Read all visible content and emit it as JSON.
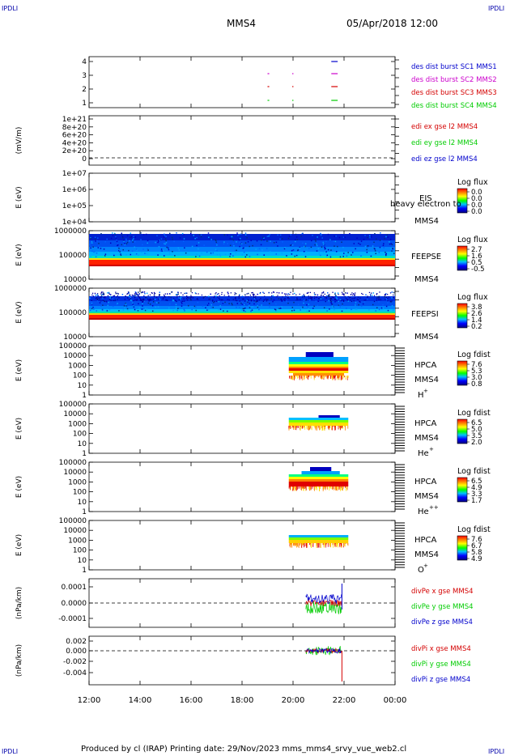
{
  "corner_label": "IPDLI",
  "header": {
    "spacecraft": "MMS4",
    "datetime": "05/Apr/2018 12:00"
  },
  "footer": {
    "text": "Produced by cl (IRAP)    Printing date: 29/Nov/2023    mms_mms4_srvy_vue_web2.cl"
  },
  "colors": {
    "red": "#d40000",
    "green": "#00cc00",
    "blue": "#0000cc",
    "magenta": "#cc00cc",
    "dash": "#000000"
  },
  "chart_data": {
    "type": "stacked-time-series",
    "x_range": [
      "12:00",
      "00:00"
    ],
    "x_ticks": [
      "12:00",
      "14:00",
      "16:00",
      "18:00",
      "20:00",
      "22:00",
      "00:00"
    ],
    "panels": [
      {
        "id": "burst",
        "type": "scatter",
        "y_ticks": [
          "4",
          "3",
          "2",
          "1"
        ],
        "series": [
          {
            "name": "des dist burst SC1 MMS1",
            "color": "#0000cc",
            "y": 4,
            "segments": [
              [
                "21:30",
                "21:45"
              ]
            ]
          },
          {
            "name": "des dist burst SC2 MMS2",
            "color": "#cc00cc",
            "y": 3,
            "segments": [
              [
                "19:00",
                "19:04"
              ],
              [
                "19:58",
                "20:00"
              ],
              [
                "21:30",
                "21:45"
              ]
            ]
          },
          {
            "name": "des dist burst SC3 MMS3",
            "color": "#d40000",
            "y": 2,
            "segments": [
              [
                "19:00",
                "19:04"
              ],
              [
                "19:58",
                "20:00"
              ],
              [
                "21:30",
                "21:45"
              ]
            ]
          },
          {
            "name": "des dist burst SC4 MMS4",
            "color": "#00cc00",
            "y": 1,
            "segments": [
              [
                "19:00",
                "19:04"
              ],
              [
                "19:58",
                "20:00"
              ],
              [
                "21:30",
                "21:45"
              ]
            ]
          }
        ]
      },
      {
        "id": "edi",
        "type": "line",
        "ylabel": "(mV/m)",
        "y_ticks": [
          "1e+21",
          "8e+20",
          "6e+20",
          "4e+20",
          "2e+20",
          "0"
        ],
        "series": [
          {
            "name": "edi ex gse l2 MMS4",
            "color": "#d40000"
          },
          {
            "name": "edi ey gse l2 MMS4",
            "color": "#00cc00"
          },
          {
            "name": "edi ez gse l2 MMS4",
            "color": "#0000cc"
          }
        ]
      },
      {
        "id": "eis",
        "type": "heatmap",
        "ylabel": "E (eV)",
        "y_ticks": [
          "1e+07",
          "1e+06",
          "1e+05",
          "1e+04"
        ],
        "instrument": [
          "EIS",
          "MMS4"
        ],
        "overlay_text": "heavy electron to",
        "colorbar": {
          "title": "Log flux",
          "ticks": [
            "0.0",
            "0.0",
            "0.0",
            "0.0"
          ]
        }
      },
      {
        "id": "feepse",
        "type": "heatmap",
        "ylabel": "E (eV)",
        "y_ticks": [
          "1000000",
          "100000",
          "10000"
        ],
        "instrument": [
          "FEEPSE",
          "MMS4"
        ],
        "colorbar": {
          "title": "Log flux",
          "ticks": [
            "2.7",
            "1.6",
            "0.5",
            "-0.5"
          ]
        }
      },
      {
        "id": "feepsi",
        "type": "heatmap",
        "ylabel": "E (eV)",
        "y_ticks": [
          "1000000",
          "100000",
          "10000"
        ],
        "instrument": [
          "FEEPSI",
          "MMS4"
        ],
        "colorbar": {
          "title": "Log flux",
          "ticks": [
            "3.8",
            "2.6",
            "1.4",
            "0.2"
          ]
        }
      },
      {
        "id": "hpca_h",
        "type": "heatmap",
        "ylabel": "E (eV)",
        "y_ticks": [
          "100000",
          "10000",
          "1000",
          "100",
          "10",
          "1"
        ],
        "instrument": [
          "HPCA",
          "MMS4"
        ],
        "species": "H",
        "species_sup": "+",
        "colorbar": {
          "title": "Log fdist",
          "ticks": [
            "7.6",
            "5.3",
            "3.0",
            "0.8"
          ]
        }
      },
      {
        "id": "hpca_he",
        "type": "heatmap",
        "ylabel": "E (eV)",
        "y_ticks": [
          "100000",
          "10000",
          "1000",
          "100",
          "10",
          "1"
        ],
        "instrument": [
          "HPCA",
          "MMS4"
        ],
        "species": "He",
        "species_sup": "+",
        "colorbar": {
          "title": "Log fdist",
          "ticks": [
            "6.5",
            "5.0",
            "3.5",
            "2.0"
          ]
        }
      },
      {
        "id": "hpca_hepp",
        "type": "heatmap",
        "ylabel": "E (eV)",
        "y_ticks": [
          "100000",
          "10000",
          "1000",
          "100",
          "10",
          "1"
        ],
        "instrument": [
          "HPCA",
          "MMS4"
        ],
        "species": "He",
        "species_sup": "++",
        "colorbar": {
          "title": "Log fdist",
          "ticks": [
            "6.5",
            "4.9",
            "3.3",
            "1.7"
          ]
        }
      },
      {
        "id": "hpca_o",
        "type": "heatmap",
        "ylabel": "E (eV)",
        "y_ticks": [
          "100000",
          "10000",
          "1000",
          "100",
          "10",
          "1"
        ],
        "instrument": [
          "HPCA",
          "MMS4"
        ],
        "species": "O",
        "species_sup": "+",
        "colorbar": {
          "title": "Log fdist",
          "ticks": [
            "7.6",
            "6.7",
            "5.8",
            "4.9"
          ]
        }
      },
      {
        "id": "divpe",
        "type": "line",
        "ylabel": "(nPa/km)",
        "y_ticks": [
          "0.0001",
          "0.0000",
          "-0.0001"
        ],
        "series": [
          {
            "name": "divPe x gse MMS4",
            "color": "#d40000"
          },
          {
            "name": "divPe y gse MMS4",
            "color": "#00cc00"
          },
          {
            "name": "divPe z gse MMS4",
            "color": "#0000cc"
          }
        ]
      },
      {
        "id": "divpi",
        "type": "line",
        "ylabel": "(nPa/km)",
        "y_ticks": [
          "0.002",
          "0.000",
          "-0.002",
          "-0.004"
        ],
        "series": [
          {
            "name": "divPi x gse MMS4",
            "color": "#d40000"
          },
          {
            "name": "divPi y gse MMS4",
            "color": "#00cc00"
          },
          {
            "name": "divPi z gse MMS4",
            "color": "#0000cc"
          }
        ]
      }
    ]
  }
}
